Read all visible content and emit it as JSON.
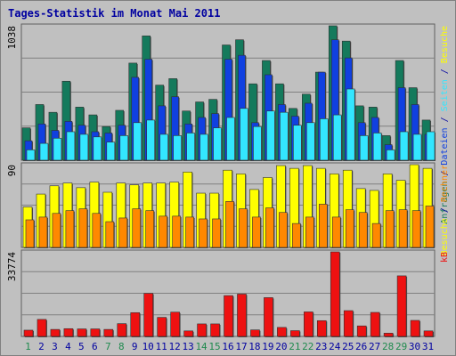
{
  "title": "Tages-Statistik im Monat Mai 2011",
  "colors": {
    "frame": "#c0c0c0",
    "panel": "#c0c0c0",
    "border": "#808080",
    "anfragen": "#147a5c",
    "dateien": "#1040e0",
    "seiten": "#33e6ff",
    "besuche": "#ffff00",
    "rechner": "#ff8800",
    "kb": "#ee1111",
    "weekend_label": "#1f8a4e",
    "weekday_label": "#0000a0"
  },
  "chart_data": [
    {
      "type": "bar",
      "panel": "top",
      "y_max_label": "1038",
      "ylim": [
        0,
        1038
      ],
      "x": [
        "1",
        "2",
        "3",
        "4",
        "5",
        "6",
        "7",
        "8",
        "9",
        "10",
        "11",
        "12",
        "13",
        "14",
        "15",
        "16",
        "17",
        "18",
        "19",
        "20",
        "21",
        "22",
        "23",
        "24",
        "25",
        "26",
        "27",
        "28",
        "29",
        "30",
        "31"
      ],
      "weekend_days": [
        "1",
        "7",
        "8",
        "14",
        "15",
        "21",
        "22",
        "28",
        "29"
      ],
      "series": [
        {
          "name": "Anfragen",
          "values": [
            250,
            430,
            370,
            610,
            410,
            350,
            260,
            385,
            750,
            960,
            580,
            630,
            380,
            450,
            470,
            890,
            930,
            590,
            770,
            590,
            400,
            510,
            680,
            1038,
            920,
            420,
            410,
            190,
            770,
            560,
            310
          ]
        },
        {
          "name": "Dateien",
          "values": [
            150,
            280,
            230,
            300,
            270,
            220,
            210,
            270,
            640,
            780,
            420,
            490,
            280,
            330,
            360,
            780,
            810,
            290,
            660,
            430,
            340,
            440,
            680,
            930,
            790,
            290,
            330,
            120,
            560,
            430,
            200
          ]
        },
        {
          "name": "Seiten",
          "values": [
            80,
            130,
            170,
            220,
            200,
            180,
            140,
            190,
            290,
            310,
            200,
            190,
            210,
            200,
            250,
            330,
            400,
            260,
            380,
            370,
            270,
            290,
            320,
            350,
            550,
            190,
            210,
            80,
            220,
            200,
            220
          ]
        }
      ]
    },
    {
      "type": "bar",
      "panel": "middle",
      "y_max_label": "90",
      "ylim": [
        0,
        90
      ],
      "x": [
        "1",
        "2",
        "3",
        "4",
        "5",
        "6",
        "7",
        "8",
        "9",
        "10",
        "11",
        "12",
        "13",
        "14",
        "15",
        "16",
        "17",
        "18",
        "19",
        "20",
        "21",
        "22",
        "23",
        "24",
        "25",
        "26",
        "27",
        "28",
        "29",
        "30",
        "31"
      ],
      "series": [
        {
          "name": "Besuche",
          "values": [
            44,
            58,
            67,
            70,
            65,
            71,
            60,
            70,
            68,
            70,
            70,
            71,
            82,
            59,
            59,
            84,
            80,
            63,
            76,
            89,
            86,
            89,
            86,
            80,
            84,
            64,
            62,
            80,
            73,
            90,
            86
          ]
        },
        {
          "name": "Rechner",
          "values": [
            30,
            33,
            37,
            40,
            42,
            37,
            28,
            32,
            42,
            40,
            34,
            34,
            33,
            31,
            31,
            50,
            42,
            33,
            43,
            38,
            26,
            33,
            47,
            33,
            41,
            38,
            26,
            40,
            41,
            40,
            45
          ]
        }
      ]
    },
    {
      "type": "bar",
      "panel": "bottom",
      "y_max_label": "33774",
      "ylim": [
        0,
        33774
      ],
      "x": [
        "1",
        "2",
        "3",
        "4",
        "5",
        "6",
        "7",
        "8",
        "9",
        "10",
        "11",
        "12",
        "13",
        "14",
        "15",
        "16",
        "17",
        "18",
        "19",
        "20",
        "21",
        "22",
        "23",
        "24",
        "25",
        "26",
        "27",
        "28",
        "29",
        "30",
        "31"
      ],
      "series": [
        {
          "name": "kB",
          "values": [
            2500,
            6800,
            2800,
            3100,
            3000,
            3000,
            2800,
            5100,
            9500,
            17200,
            7600,
            9700,
            2200,
            5000,
            5000,
            16300,
            16900,
            2600,
            15500,
            3600,
            2300,
            9800,
            6300,
            33774,
            10300,
            4200,
            9600,
            1300,
            24200,
            6400,
            2200
          ]
        }
      ]
    }
  ],
  "side_labels": {
    "top": [
      {
        "text": "Anfragen",
        "color": "#147a5c"
      },
      {
        "text": " / ",
        "color": "#0000a0"
      },
      {
        "text": "Dateien",
        "color": "#1040e0"
      },
      {
        "text": " / ",
        "color": "#0000a0"
      },
      {
        "text": "Seiten",
        "color": "#33e6ff"
      },
      {
        "text": " / ",
        "color": "#0000a0"
      },
      {
        "text": "Besuche",
        "color": "#ffff00"
      }
    ],
    "middle": [
      {
        "text": "Besuche",
        "color": "#ffff00"
      },
      {
        "text": " / ",
        "color": "#0000a0"
      },
      {
        "text": "Rechner",
        "color": "#ff8800"
      }
    ],
    "bottom": [
      {
        "text": "kB",
        "color": "#ee1111"
      }
    ]
  }
}
